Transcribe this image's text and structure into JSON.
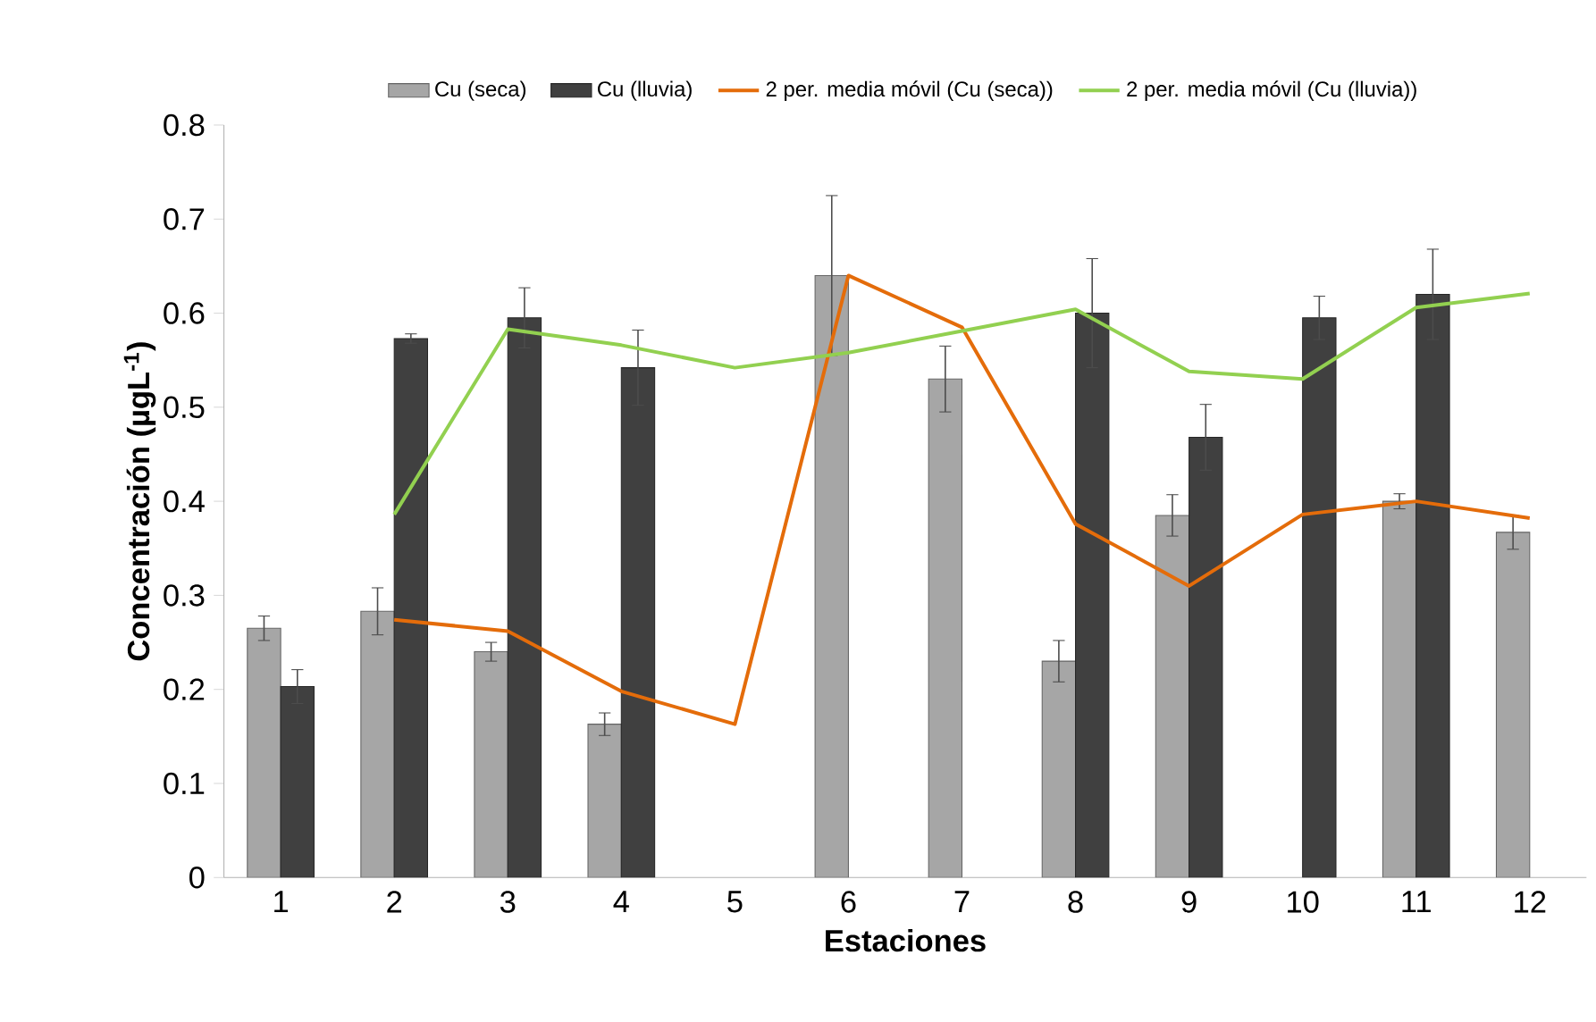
{
  "chart_data": {
    "type": "bar",
    "xlabel": "Estaciones",
    "ylabel": "Concentración (µgL$^{-1}$)",
    "categories": [
      "1",
      "2",
      "3",
      "4",
      "5",
      "6",
      "7",
      "8",
      "9",
      "10",
      "11",
      "12"
    ],
    "ylim": [
      0,
      0.8
    ],
    "yticks": [
      0,
      0.1,
      0.2,
      0.3,
      0.4,
      0.5,
      0.6,
      0.7,
      0.8
    ],
    "legend": "top",
    "grid": false,
    "series": [
      {
        "name": "Cu (seca)",
        "color": "#a6a6a6",
        "values": [
          0.265,
          0.283,
          0.24,
          0.163,
          null,
          0.64,
          0.53,
          0.23,
          0.385,
          null,
          0.4,
          0.367
        ],
        "errors": [
          0.013,
          0.025,
          0.01,
          0.012,
          null,
          0.085,
          0.035,
          0.022,
          0.022,
          null,
          0.008,
          0.018
        ]
      },
      {
        "name": "Cu (lluvia)",
        "color": "#404040",
        "values": [
          0.203,
          0.573,
          0.595,
          0.542,
          null,
          null,
          null,
          0.6,
          0.468,
          0.595,
          0.62,
          null
        ],
        "errors": [
          0.018,
          0.005,
          0.032,
          0.04,
          null,
          null,
          null,
          0.058,
          0.035,
          0.023,
          0.048,
          null
        ]
      },
      {
        "name": "2 per. media móvil (Cu (seca))",
        "type": "line",
        "color": "#e46c0a",
        "values": [
          null,
          0.274,
          0.262,
          0.198,
          0.163,
          0.64,
          0.585,
          0.376,
          0.31,
          0.386,
          0.4,
          0.382
        ]
      },
      {
        "name": "2 per. media móvil (Cu (lluvia))",
        "type": "line",
        "color": "#92d050",
        "values": [
          null,
          0.386,
          0.583,
          0.566,
          0.542,
          0.558,
          0.581,
          0.604,
          0.538,
          0.53,
          0.606,
          0.621
        ]
      }
    ]
  }
}
